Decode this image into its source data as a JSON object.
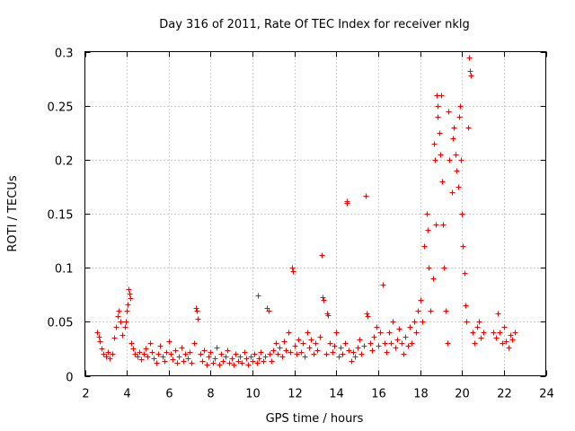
{
  "chart_data": {
    "type": "scatter",
    "title": "Day 316 of 2011, Rate Of TEC Index for receiver nklg",
    "xlabel": "GPS time / hours",
    "ylabel": "ROTI / TECUs",
    "xlim": [
      2,
      24
    ],
    "ylim": [
      0,
      0.3
    ],
    "xticks": [
      2,
      4,
      6,
      8,
      10,
      12,
      14,
      16,
      18,
      20,
      22,
      24
    ],
    "xtick_labels": [
      "2",
      "4",
      "6",
      "8",
      "10",
      "12",
      "14",
      "16",
      "18",
      "20",
      "22",
      "24"
    ],
    "yticks": [
      0,
      0.05,
      0.1,
      0.15,
      0.2,
      0.25,
      0.3
    ],
    "ytick_labels": [
      "0",
      "0.05",
      "0.1",
      "0.15",
      "0.2",
      "0.25",
      "0.3"
    ],
    "grid": true,
    "marker": "+",
    "series_color": "#ff0000",
    "series": [
      {
        "name": "nklg",
        "points": [
          [
            2.6,
            0.04
          ],
          [
            2.65,
            0.036
          ],
          [
            2.7,
            0.032
          ],
          [
            2.8,
            0.025
          ],
          [
            2.9,
            0.02
          ],
          [
            3.0,
            0.018
          ],
          [
            3.1,
            0.022
          ],
          [
            3.2,
            0.016
          ],
          [
            3.3,
            0.02
          ],
          [
            3.4,
            0.035
          ],
          [
            3.5,
            0.045
          ],
          [
            3.55,
            0.055
          ],
          [
            3.6,
            0.06
          ],
          [
            3.7,
            0.05
          ],
          [
            3.8,
            0.038
          ],
          [
            3.9,
            0.045
          ],
          [
            3.95,
            0.05
          ],
          [
            4.0,
            0.06
          ],
          [
            4.05,
            0.066
          ],
          [
            4.1,
            0.08
          ],
          [
            4.12,
            0.076
          ],
          [
            4.15,
            0.072
          ],
          [
            4.2,
            0.03
          ],
          [
            4.3,
            0.025
          ],
          [
            4.4,
            0.02
          ],
          [
            4.5,
            0.018
          ],
          [
            4.6,
            0.022
          ],
          [
            4.7,
            0.015
          ],
          [
            4.8,
            0.02
          ],
          [
            4.9,
            0.025
          ],
          [
            5.0,
            0.018
          ],
          [
            5.1,
            0.03
          ],
          [
            5.2,
            0.022
          ],
          [
            5.3,
            0.016
          ],
          [
            5.4,
            0.012
          ],
          [
            5.5,
            0.02
          ],
          [
            5.6,
            0.028
          ],
          [
            5.7,
            0.018
          ],
          [
            5.8,
            0.014
          ],
          [
            5.9,
            0.022
          ],
          [
            6.0,
            0.032
          ],
          [
            6.1,
            0.02
          ],
          [
            6.2,
            0.015
          ],
          [
            6.3,
            0.024
          ],
          [
            6.4,
            0.012
          ],
          [
            6.5,
            0.018
          ],
          [
            6.6,
            0.026
          ],
          [
            6.7,
            0.014
          ],
          [
            6.8,
            0.02
          ],
          [
            6.9,
            0.016
          ],
          [
            7.0,
            0.022
          ],
          [
            7.1,
            0.012
          ],
          [
            7.2,
            0.03
          ],
          [
            7.3,
            0.063
          ],
          [
            7.35,
            0.06
          ],
          [
            7.4,
            0.053
          ],
          [
            7.5,
            0.02
          ],
          [
            7.6,
            0.014
          ],
          [
            7.7,
            0.024
          ],
          [
            7.8,
            0.01
          ],
          [
            7.9,
            0.018
          ],
          [
            8.0,
            0.022
          ],
          [
            8.1,
            0.012
          ],
          [
            8.2,
            0.016
          ],
          [
            8.3,
            0.026
          ],
          [
            8.4,
            0.01
          ],
          [
            8.5,
            0.02
          ],
          [
            8.6,
            0.014
          ],
          [
            8.7,
            0.018
          ],
          [
            8.8,
            0.024
          ],
          [
            8.9,
            0.012
          ],
          [
            9.0,
            0.016
          ],
          [
            9.1,
            0.01
          ],
          [
            9.2,
            0.02
          ],
          [
            9.3,
            0.014
          ],
          [
            9.4,
            0.018
          ],
          [
            9.5,
            0.012
          ],
          [
            9.6,
            0.022
          ],
          [
            9.7,
            0.016
          ],
          [
            9.8,
            0.01
          ],
          [
            9.9,
            0.018
          ],
          [
            10.0,
            0.014
          ],
          [
            10.1,
            0.02
          ],
          [
            10.2,
            0.012
          ],
          [
            10.25,
            0.074
          ],
          [
            10.3,
            0.016
          ],
          [
            10.4,
            0.022
          ],
          [
            10.5,
            0.014
          ],
          [
            10.6,
            0.018
          ],
          [
            10.7,
            0.063
          ],
          [
            10.75,
            0.06
          ],
          [
            10.8,
            0.02
          ],
          [
            10.9,
            0.014
          ],
          [
            11.0,
            0.024
          ],
          [
            11.1,
            0.03
          ],
          [
            11.2,
            0.02
          ],
          [
            11.3,
            0.026
          ],
          [
            11.4,
            0.018
          ],
          [
            11.5,
            0.032
          ],
          [
            11.6,
            0.024
          ],
          [
            11.7,
            0.04
          ],
          [
            11.8,
            0.022
          ],
          [
            11.9,
            0.1
          ],
          [
            11.92,
            0.097
          ],
          [
            12.0,
            0.028
          ],
          [
            12.1,
            0.02
          ],
          [
            12.2,
            0.034
          ],
          [
            12.3,
            0.022
          ],
          [
            12.4,
            0.03
          ],
          [
            12.5,
            0.018
          ],
          [
            12.6,
            0.04
          ],
          [
            12.7,
            0.026
          ],
          [
            12.8,
            0.034
          ],
          [
            12.9,
            0.02
          ],
          [
            13.0,
            0.03
          ],
          [
            13.1,
            0.024
          ],
          [
            13.2,
            0.036
          ],
          [
            13.3,
            0.112
          ],
          [
            13.35,
            0.073
          ],
          [
            13.4,
            0.07
          ],
          [
            13.5,
            0.02
          ],
          [
            13.55,
            0.058
          ],
          [
            13.6,
            0.056
          ],
          [
            13.7,
            0.03
          ],
          [
            13.8,
            0.022
          ],
          [
            13.9,
            0.028
          ],
          [
            14.0,
            0.04
          ],
          [
            14.1,
            0.018
          ],
          [
            14.2,
            0.026
          ],
          [
            14.3,
            0.02
          ],
          [
            14.4,
            0.03
          ],
          [
            14.5,
            0.162
          ],
          [
            14.52,
            0.16
          ],
          [
            14.6,
            0.024
          ],
          [
            14.7,
            0.014
          ],
          [
            14.8,
            0.022
          ],
          [
            14.9,
            0.018
          ],
          [
            15.0,
            0.026
          ],
          [
            15.1,
            0.034
          ],
          [
            15.2,
            0.02
          ],
          [
            15.3,
            0.028
          ],
          [
            15.4,
            0.167
          ],
          [
            15.45,
            0.058
          ],
          [
            15.5,
            0.055
          ],
          [
            15.6,
            0.03
          ],
          [
            15.7,
            0.024
          ],
          [
            15.8,
            0.036
          ],
          [
            15.9,
            0.045
          ],
          [
            16.0,
            0.028
          ],
          [
            16.1,
            0.04
          ],
          [
            16.2,
            0.084
          ],
          [
            16.3,
            0.03
          ],
          [
            16.4,
            0.022
          ],
          [
            16.5,
            0.04
          ],
          [
            16.6,
            0.03
          ],
          [
            16.7,
            0.05
          ],
          [
            16.8,
            0.026
          ],
          [
            16.9,
            0.034
          ],
          [
            17.0,
            0.044
          ],
          [
            17.1,
            0.03
          ],
          [
            17.2,
            0.02
          ],
          [
            17.3,
            0.036
          ],
          [
            17.4,
            0.028
          ],
          [
            17.5,
            0.045
          ],
          [
            17.6,
            0.03
          ],
          [
            17.7,
            0.05
          ],
          [
            17.8,
            0.04
          ],
          [
            17.9,
            0.06
          ],
          [
            18.0,
            0.07
          ],
          [
            18.1,
            0.05
          ],
          [
            18.2,
            0.12
          ],
          [
            18.3,
            0.15
          ],
          [
            18.35,
            0.135
          ],
          [
            18.4,
            0.1
          ],
          [
            18.5,
            0.06
          ],
          [
            18.6,
            0.09
          ],
          [
            18.65,
            0.215
          ],
          [
            18.7,
            0.2
          ],
          [
            18.75,
            0.14
          ],
          [
            18.8,
            0.26
          ],
          [
            18.82,
            0.25
          ],
          [
            18.85,
            0.24
          ],
          [
            18.9,
            0.225
          ],
          [
            18.95,
            0.205
          ],
          [
            19.0,
            0.26
          ],
          [
            19.05,
            0.18
          ],
          [
            19.1,
            0.14
          ],
          [
            19.15,
            0.1
          ],
          [
            19.2,
            0.06
          ],
          [
            19.3,
            0.03
          ],
          [
            19.35,
            0.245
          ],
          [
            19.4,
            0.2
          ],
          [
            19.5,
            0.17
          ],
          [
            19.55,
            0.22
          ],
          [
            19.6,
            0.23
          ],
          [
            19.7,
            0.205
          ],
          [
            19.75,
            0.19
          ],
          [
            19.8,
            0.175
          ],
          [
            19.85,
            0.24
          ],
          [
            19.9,
            0.25
          ],
          [
            19.95,
            0.2
          ],
          [
            20.0,
            0.15
          ],
          [
            20.05,
            0.12
          ],
          [
            20.1,
            0.095
          ],
          [
            20.15,
            0.065
          ],
          [
            20.2,
            0.05
          ],
          [
            20.3,
            0.23
          ],
          [
            20.35,
            0.295
          ],
          [
            20.38,
            0.282
          ],
          [
            20.4,
            0.278
          ],
          [
            20.5,
            0.04
          ],
          [
            20.6,
            0.03
          ],
          [
            20.7,
            0.045
          ],
          [
            20.8,
            0.05
          ],
          [
            20.9,
            0.035
          ],
          [
            21.0,
            0.04
          ],
          [
            21.5,
            0.04
          ],
          [
            21.6,
            0.035
          ],
          [
            21.7,
            0.058
          ],
          [
            21.8,
            0.04
          ],
          [
            21.9,
            0.03
          ],
          [
            22.0,
            0.045
          ],
          [
            22.1,
            0.032
          ],
          [
            22.2,
            0.026
          ],
          [
            22.3,
            0.038
          ],
          [
            22.4,
            0.034
          ],
          [
            22.5,
            0.04
          ]
        ]
      }
    ]
  }
}
